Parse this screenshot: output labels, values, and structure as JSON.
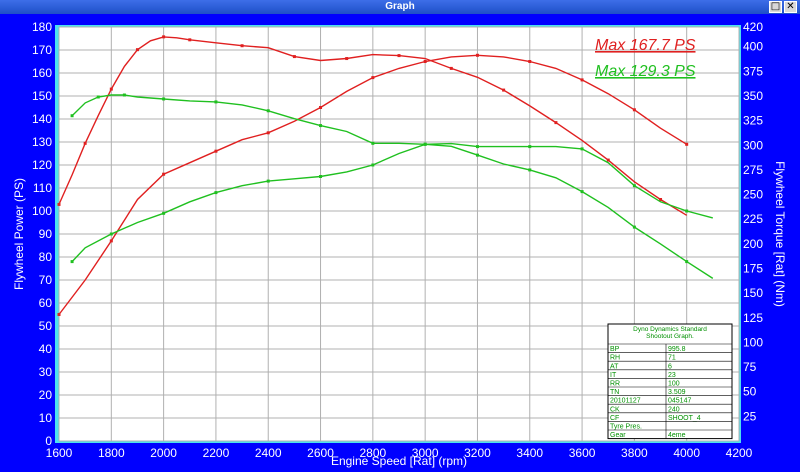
{
  "window": {
    "title": "Graph",
    "restore_glyph": "□",
    "close_glyph": "✕"
  },
  "colors": {
    "power": "#e02020",
    "torque": "#20c020",
    "background": "#0000ff",
    "plot_bg": "#ffffff",
    "grid": "#b0b0b0"
  },
  "chart_data": {
    "type": "line",
    "xlabel": "Engine Speed [Rat] (rpm)",
    "ylabel": "Flywheel Power (PS)",
    "ylabel_right": "Flywheel Torque [Rat] (Nm)",
    "xlim": [
      1600,
      4200
    ],
    "ylim": [
      0,
      180
    ],
    "ylim_right": [
      0,
      420
    ],
    "x_ticks": [
      1600,
      1800,
      2000,
      2200,
      2400,
      2600,
      2800,
      3000,
      3200,
      3400,
      3600,
      3800,
      4000,
      4200
    ],
    "y_ticks": [
      0,
      10,
      20,
      30,
      40,
      50,
      60,
      70,
      80,
      90,
      100,
      110,
      120,
      130,
      140,
      150,
      160,
      170,
      180
    ],
    "y_ticks_right": [
      25,
      50,
      75,
      100,
      125,
      150,
      175,
      200,
      225,
      250,
      275,
      300,
      325,
      350,
      375,
      400,
      420
    ],
    "grid": true,
    "annotations": [
      {
        "text": "Max 167.7 PS",
        "color": "#e02020"
      },
      {
        "text": "Max 129.3 PS",
        "color": "#20c020"
      }
    ],
    "series": [
      {
        "axis": "left",
        "color": "#e02020",
        "x": [
          1600,
          1700,
          1800,
          1900,
          2000,
          2100,
          2200,
          2300,
          2400,
          2500,
          2600,
          2700,
          2800,
          2900,
          3000,
          3100,
          3200,
          3300,
          3400,
          3500,
          3600,
          3700,
          3800,
          3900,
          4000
        ],
        "y": [
          55,
          70,
          87,
          105,
          116,
          121,
          126,
          131,
          134,
          139,
          145,
          152,
          158,
          162,
          165,
          167,
          167.7,
          167,
          165,
          162,
          157,
          151,
          144,
          136,
          129
        ]
      },
      {
        "axis": "right",
        "color": "#e02020",
        "x": [
          1600,
          1650,
          1700,
          1750,
          1800,
          1850,
          1900,
          1950,
          2000,
          2050,
          2100,
          2200,
          2300,
          2400,
          2500,
          2600,
          2700,
          2800,
          2900,
          3000,
          3100,
          3200,
          3300,
          3400,
          3500,
          3600,
          3700,
          3800,
          3900,
          4000
        ],
        "y": [
          240,
          270,
          302,
          330,
          357,
          380,
          397,
          406,
          410,
          409,
          407,
          404,
          401,
          399,
          390,
          386,
          388,
          392,
          391,
          388,
          378,
          369,
          356,
          340,
          323,
          305,
          285,
          263,
          245,
          229
        ]
      },
      {
        "axis": "left",
        "color": "#20c020",
        "x": [
          1650,
          1700,
          1800,
          1900,
          2000,
          2100,
          2200,
          2300,
          2400,
          2500,
          2600,
          2700,
          2800,
          2900,
          3000,
          3100,
          3200,
          3300,
          3400,
          3500,
          3600,
          3700,
          3800,
          3900,
          4000,
          4100
        ],
        "y": [
          78,
          84,
          90,
          95,
          99,
          104,
          108,
          111,
          113,
          114,
          115,
          117,
          120,
          125,
          129,
          129.3,
          128,
          128,
          128,
          128,
          127,
          121,
          111,
          104,
          100,
          97
        ]
      },
      {
        "axis": "right",
        "color": "#20c020",
        "x": [
          1650,
          1700,
          1750,
          1800,
          1850,
          1900,
          2000,
          2100,
          2200,
          2300,
          2400,
          2500,
          2600,
          2700,
          2800,
          2900,
          3000,
          3100,
          3200,
          3300,
          3400,
          3500,
          3600,
          3700,
          3800,
          3900,
          4000,
          4100
        ],
        "y": [
          330,
          343,
          349,
          351,
          351,
          349,
          347,
          345,
          344,
          341,
          335,
          327,
          320,
          314,
          302,
          302,
          301,
          299,
          290,
          281,
          275,
          267,
          253,
          237,
          217,
          200,
          182,
          165
        ]
      }
    ],
    "info_box": {
      "title_lines": [
        "Dyno Dynamics Standard",
        "Shootout Graph."
      ],
      "rows": [
        [
          "BP",
          "995.8"
        ],
        [
          "RH",
          "71"
        ],
        [
          "AT",
          "6"
        ],
        [
          "IT",
          "23"
        ],
        [
          "RR",
          "100"
        ],
        [
          "TN",
          "3.509"
        ],
        [
          "20101127",
          "045147"
        ],
        [
          "CK",
          "240"
        ],
        [
          "CF",
          "SHOOT_4"
        ],
        [
          "Tyre Pres.",
          ""
        ],
        [
          "Gear",
          "4eme"
        ]
      ]
    }
  }
}
